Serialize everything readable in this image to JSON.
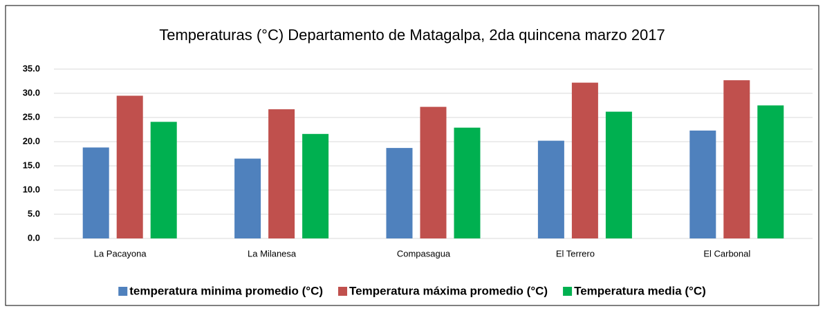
{
  "chart_data": {
    "type": "bar",
    "title": "Temperaturas (°C) Departamento de Matagalpa, 2da quincena marzo 2017",
    "categories": [
      "La Pacayona",
      "La Milanesa",
      "Compasagua",
      "El Terrero",
      "El Carbonal"
    ],
    "series": [
      {
        "name": "temperatura minima promedio (°C)",
        "color": "#4f81bd",
        "values": [
          18.8,
          16.5,
          18.7,
          20.2,
          22.3
        ]
      },
      {
        "name": "Temperatura máxima promedio (°C)",
        "color": "#c0504d",
        "values": [
          29.5,
          26.7,
          27.2,
          32.2,
          32.7
        ]
      },
      {
        "name": "Temperatura media (°C)",
        "color": "#00b050",
        "values": [
          24.1,
          21.6,
          22.9,
          26.2,
          27.5
        ]
      }
    ],
    "ylim": [
      0,
      35
    ],
    "yticks": [
      {
        "value": 0,
        "label": "0.0"
      },
      {
        "value": 5,
        "label": "5.0"
      },
      {
        "value": 10,
        "label": "10.0"
      },
      {
        "value": 15,
        "label": "15.0"
      },
      {
        "value": 20,
        "label": "20.0"
      },
      {
        "value": 25,
        "label": "25.0"
      },
      {
        "value": 30,
        "label": "30.0"
      },
      {
        "value": 35,
        "label": "35.0"
      }
    ],
    "grid": true,
    "legend": "bottom"
  }
}
